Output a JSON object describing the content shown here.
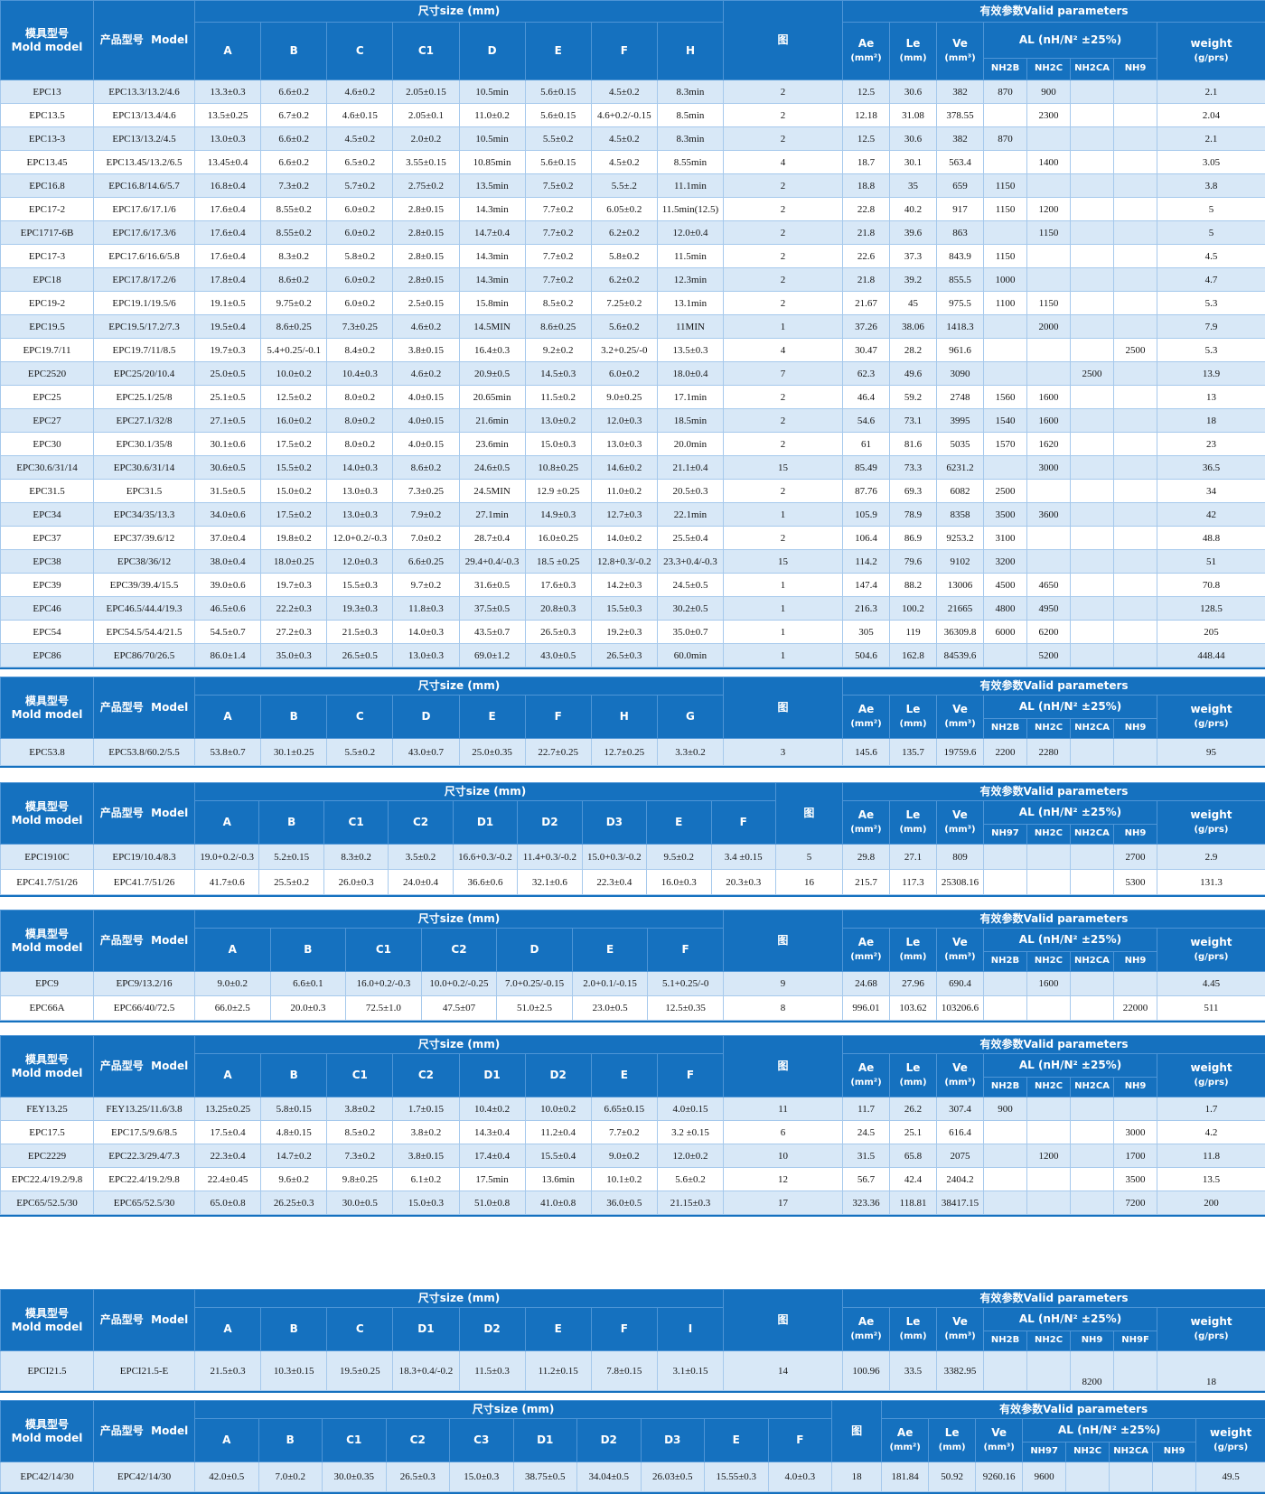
{
  "header_labels": {
    "mold": "模具型号",
    "mold_en": "Mold model",
    "product": "产品型号",
    "product_en": "Model",
    "size": "尺寸size (mm)",
    "figure": "图",
    "valid": "有效参数Valid parameters",
    "ae": "Ae",
    "ae_unit": "(mm²)",
    "le": "Le",
    "le_unit": "(mm)",
    "ve": "Ve",
    "ve_unit": "(mm³)",
    "al": "AL (nH/N² ±25%)",
    "weight": "weight",
    "weight_unit": "(g/prs)"
  },
  "tables": [
    {
      "dim_cols": [
        "A",
        "B",
        "C",
        "C1",
        "D",
        "E",
        "F",
        "H"
      ],
      "al_cols": [
        "NH2B",
        "NH2C",
        "NH2CA",
        "NH9"
      ],
      "rows": [
        [
          "EPC13",
          "EPC13.3/13.2/4.6",
          "13.3±0.3",
          "6.6±0.2",
          "4.6±0.2",
          "2.05±0.15",
          "10.5min",
          "5.6±0.15",
          "4.5±0.2",
          "8.3min",
          "2",
          "12.5",
          "30.6",
          "382",
          "870",
          "900",
          "",
          "",
          "2.1"
        ],
        [
          "EPC13.5",
          "EPC13/13.4/4.6",
          "13.5±0.25",
          "6.7±0.2",
          "4.6±0.15",
          "2.05±0.1",
          "11.0±0.2",
          "5.6±0.15",
          "4.6+0.2/-0.15",
          "8.5min",
          "2",
          "12.18",
          "31.08",
          "378.55",
          "",
          "2300",
          "",
          "",
          "2.04"
        ],
        [
          "EPC13-3",
          "EPC13/13.2/4.5",
          "13.0±0.3",
          "6.6±0.2",
          "4.5±0.2",
          "2.0±0.2",
          "10.5min",
          "5.5±0.2",
          "4.5±0.2",
          "8.3min",
          "2",
          "12.5",
          "30.6",
          "382",
          "870",
          "",
          "",
          "",
          "2.1"
        ],
        [
          "EPC13.45",
          "EPC13.45/13.2/6.5",
          "13.45±0.4",
          "6.6±0.2",
          "6.5±0.2",
          "3.55±0.15",
          "10.85min",
          "5.6±0.15",
          "4.5±0.2",
          "8.55min",
          "4",
          "18.7",
          "30.1",
          "563.4",
          "",
          "1400",
          "",
          "",
          "3.05"
        ],
        [
          "EPC16.8",
          "EPC16.8/14.6/5.7",
          "16.8±0.4",
          "7.3±0.2",
          "5.7±0.2",
          "2.75±0.2",
          "13.5min",
          "7.5±0.2",
          "5.5±.2",
          "11.1min",
          "2",
          "18.8",
          "35",
          "659",
          "1150",
          "",
          "",
          "",
          "3.8"
        ],
        [
          "EPC17-2",
          "EPC17.6/17.1/6",
          "17.6±0.4",
          "8.55±0.2",
          "6.0±0.2",
          "2.8±0.15",
          "14.3min",
          "7.7±0.2",
          "6.05±0.2",
          "11.5min(12.5)",
          "2",
          "22.8",
          "40.2",
          "917",
          "1150",
          "1200",
          "",
          "",
          "5"
        ],
        [
          "EPC1717-6B",
          "EPC17.6/17.3/6",
          "17.6±0.4",
          "8.55±0.2",
          "6.0±0.2",
          "2.8±0.15",
          "14.7±0.4",
          "7.7±0.2",
          "6.2±0.2",
          "12.0±0.4",
          "2",
          "21.8",
          "39.6",
          "863",
          "",
          "1150",
          "",
          "",
          "5"
        ],
        [
          "EPC17-3",
          "EPC17.6/16.6/5.8",
          "17.6±0.4",
          "8.3±0.2",
          "5.8±0.2",
          "2.8±0.15",
          "14.3min",
          "7.7±0.2",
          "5.8±0.2",
          "11.5min",
          "2",
          "22.6",
          "37.3",
          "843.9",
          "1150",
          "",
          "",
          "",
          "4.5"
        ],
        [
          "EPC18",
          "EPC17.8/17.2/6",
          "17.8±0.4",
          "8.6±0.2",
          "6.0±0.2",
          "2.8±0.15",
          "14.3min",
          "7.7±0.2",
          "6.2±0.2",
          "12.3min",
          "2",
          "21.8",
          "39.2",
          "855.5",
          "1000",
          "",
          "",
          "",
          "4.7"
        ],
        [
          "EPC19-2",
          "EPC19.1/19.5/6",
          "19.1±0.5",
          "9.75±0.2",
          "6.0±0.2",
          "2.5±0.15",
          "15.8min",
          "8.5±0.2",
          "7.25±0.2",
          "13.1min",
          "2",
          "21.67",
          "45",
          "975.5",
          "1100",
          "1150",
          "",
          "",
          "5.3"
        ],
        [
          "EPC19.5",
          "EPC19.5/17.2/7.3",
          "19.5±0.4",
          "8.6±0.25",
          "7.3±0.25",
          "4.6±0.2",
          "14.5MIN",
          "8.6±0.25",
          "5.6±0.2",
          "11MIN",
          "1",
          "37.26",
          "38.06",
          "1418.3",
          "",
          "2000",
          "",
          "",
          "7.9"
        ],
        [
          "EPC19.7/11",
          "EPC19.7/11/8.5",
          "19.7±0.3",
          "5.4+0.25/-0.1",
          "8.4±0.2",
          "3.8±0.15",
          "16.4±0.3",
          "9.2±0.2",
          "3.2+0.25/-0",
          "13.5±0.3",
          "4",
          "30.47",
          "28.2",
          "961.6",
          "",
          "",
          "",
          "2500",
          "5.3"
        ],
        [
          "EPC2520",
          "EPC25/20/10.4",
          "25.0±0.5",
          "10.0±0.2",
          "10.4±0.3",
          "4.6±0.2",
          "20.9±0.5",
          "14.5±0.3",
          "6.0±0.2",
          "18.0±0.4",
          "7",
          "62.3",
          "49.6",
          "3090",
          "",
          "",
          "2500",
          "",
          "13.9"
        ],
        [
          "EPC25",
          "EPC25.1/25/8",
          "25.1±0.5",
          "12.5±0.2",
          "8.0±0.2",
          "4.0±0.15",
          "20.65min",
          "11.5±0.2",
          "9.0±0.25",
          "17.1min",
          "2",
          "46.4",
          "59.2",
          "2748",
          "1560",
          "1600",
          "",
          "",
          "13"
        ],
        [
          "EPC27",
          "EPC27.1/32/8",
          "27.1±0.5",
          "16.0±0.2",
          "8.0±0.2",
          "4.0±0.15",
          "21.6min",
          "13.0±0.2",
          "12.0±0.3",
          "18.5min",
          "2",
          "54.6",
          "73.1",
          "3995",
          "1540",
          "1600",
          "",
          "",
          "18"
        ],
        [
          "EPC30",
          "EPC30.1/35/8",
          "30.1±0.6",
          "17.5±0.2",
          "8.0±0.2",
          "4.0±0.15",
          "23.6min",
          "15.0±0.3",
          "13.0±0.3",
          "20.0min",
          "2",
          "61",
          "81.6",
          "5035",
          "1570",
          "1620",
          "",
          "",
          "23"
        ],
        [
          "EPC30.6/31/14",
          "EPC30.6/31/14",
          "30.6±0.5",
          "15.5±0.2",
          "14.0±0.3",
          "8.6±0.2",
          "24.6±0.5",
          "10.8±0.25",
          "14.6±0.2",
          "21.1±0.4",
          "15",
          "85.49",
          "73.3",
          "6231.2",
          "",
          "3000",
          "",
          "",
          "36.5"
        ],
        [
          "EPC31.5",
          "EPC31.5",
          "31.5±0.5",
          "15.0±0.2",
          "13.0±0.3",
          "7.3±0.25",
          "24.5MIN",
          "12.9 ±0.25",
          "11.0±0.2",
          "20.5±0.3",
          "2",
          "87.76",
          "69.3",
          "6082",
          "2500",
          "",
          "",
          "",
          "34"
        ],
        [
          "EPC34",
          "EPC34/35/13.3",
          "34.0±0.6",
          "17.5±0.2",
          "13.0±0.3",
          "7.9±0.2",
          "27.1min",
          "14.9±0.3",
          "12.7±0.3",
          "22.1min",
          "1",
          "105.9",
          "78.9",
          "8358",
          "3500",
          "3600",
          "",
          "",
          "42"
        ],
        [
          "EPC37",
          "EPC37/39.6/12",
          "37.0±0.4",
          "19.8±0.2",
          "12.0+0.2/-0.3",
          "7.0±0.2",
          "28.7±0.4",
          "16.0±0.25",
          "14.0±0.2",
          "25.5±0.4",
          "2",
          "106.4",
          "86.9",
          "9253.2",
          "3100",
          "",
          "",
          "",
          "48.8"
        ],
        [
          "EPC38",
          "EPC38/36/12",
          "38.0±0.4",
          "18.0±0.25",
          "12.0±0.3",
          "6.6±0.25",
          "29.4+0.4/-0.3",
          "18.5 ±0.25",
          "12.8+0.3/-0.2",
          "23.3+0.4/-0.3",
          "15",
          "114.2",
          "79.6",
          "9102",
          "3200",
          "",
          "",
          "",
          "51"
        ],
        [
          "EPC39",
          "EPC39/39.4/15.5",
          "39.0±0.6",
          "19.7±0.3",
          "15.5±0.3",
          "9.7±0.2",
          "31.6±0.5",
          "17.6±0.3",
          "14.2±0.3",
          "24.5±0.5",
          "1",
          "147.4",
          "88.2",
          "13006",
          "4500",
          "4650",
          "",
          "",
          "70.8"
        ],
        [
          "EPC46",
          "EPC46.5/44.4/19.3",
          "46.5±0.6",
          "22.2±0.3",
          "19.3±0.3",
          "11.8±0.3",
          "37.5±0.5",
          "20.8±0.3",
          "15.5±0.3",
          "30.2±0.5",
          "1",
          "216.3",
          "100.2",
          "21665",
          "4800",
          "4950",
          "",
          "",
          "128.5"
        ],
        [
          "EPC54",
          "EPC54.5/54.4/21.5",
          "54.5±0.7",
          "27.2±0.3",
          "21.5±0.3",
          "14.0±0.3",
          "43.5±0.7",
          "26.5±0.3",
          "19.2±0.3",
          "35.0±0.7",
          "1",
          "305",
          "119",
          "36309.8",
          "6000",
          "6200",
          "",
          "",
          "205"
        ],
        [
          "EPC86",
          "EPC86/70/26.5",
          "86.0±1.4",
          "35.0±0.3",
          "26.5±0.5",
          "13.0±0.3",
          "69.0±1.2",
          "43.0±0.5",
          "26.5±0.3",
          "60.0min",
          "1",
          "504.6",
          "162.8",
          "84539.6",
          "",
          "5200",
          "",
          "",
          "448.44"
        ]
      ]
    },
    {
      "dim_cols": [
        "A",
        "B",
        "C",
        "D",
        "E",
        "F",
        "H",
        "G"
      ],
      "al_cols": [
        "NH2B",
        "NH2C",
        "NH2CA",
        "NH9"
      ],
      "rows": [
        [
          "EPC53.8",
          "EPC53.8/60.2/5.5",
          "53.8±0.7",
          "30.1±0.25",
          "5.5±0.2",
          "43.0±0.7",
          "25.0±0.35",
          "22.7±0.25",
          "12.7±0.25",
          "3.3±0.2",
          "3",
          "145.6",
          "135.7",
          "19759.6",
          "2200",
          "2280",
          "",
          "",
          "95"
        ]
      ]
    },
    {
      "dim_cols": [
        "A",
        "B",
        "C1",
        "C2",
        "D1",
        "D2",
        "D3",
        "E",
        "F"
      ],
      "al_cols": [
        "NH97",
        "NH2C",
        "NH2CA",
        "NH9"
      ],
      "rows": [
        [
          "EPC1910C",
          "EPC19/10.4/8.3",
          "19.0+0.2/-0.3",
          "5.2±0.15",
          "8.3±0.2",
          "3.5±0.2",
          "16.6+0.3/-0.2",
          "11.4+0.3/-0.2",
          "15.0+0.3/-0.2",
          "9.5±0.2",
          "3.4 ±0.15",
          "5",
          "29.8",
          "27.1",
          "809",
          "",
          "",
          "",
          "2700",
          "2.9"
        ],
        [
          "EPC41.7/51/26",
          "EPC41.7/51/26",
          "41.7±0.6",
          "25.5±0.2",
          "26.0±0.3",
          "24.0±0.4",
          "36.6±0.6",
          "32.1±0.6",
          "22.3±0.4",
          "16.0±0.3",
          "20.3±0.3",
          "16",
          "215.7",
          "117.3",
          "25308.16",
          "",
          "",
          "",
          "5300",
          "131.3"
        ]
      ]
    },
    {
      "dim_cols": [
        "A",
        "B",
        "C1",
        "C2",
        "D",
        "E",
        "F"
      ],
      "al_cols": [
        "NH2B",
        "NH2C",
        "NH2CA",
        "NH9"
      ],
      "rows": [
        [
          "EPC9",
          "EPC9/13.2/16",
          "9.0±0.2",
          "6.6±0.1",
          "16.0+0.2/-0.3",
          "10.0+0.2/-0.25",
          "7.0+0.25/-0.15",
          "2.0+0.1/-0.15",
          "5.1+0.25/-0",
          "9",
          "24.68",
          "27.96",
          "690.4",
          "",
          "1600",
          "",
          "",
          "4.45"
        ],
        [
          "EPC66A",
          "EPC66/40/72.5",
          "66.0±2.5",
          "20.0±0.3",
          "72.5±1.0",
          "47.5±07",
          "51.0±2.5",
          "23.0±0.5",
          "12.5±0.35",
          "8",
          "996.01",
          "103.62",
          "103206.6",
          "",
          "",
          "",
          "22000",
          "511"
        ]
      ]
    },
    {
      "dim_cols": [
        "A",
        "B",
        "C1",
        "C2",
        "D1",
        "D2",
        "E",
        "F"
      ],
      "al_cols": [
        "NH2B",
        "NH2C",
        "NH2CA",
        "NH9"
      ],
      "rows": [
        [
          "FEY13.25",
          "FEY13.25/11.6/3.8",
          "13.25±0.25",
          "5.8±0.15",
          "3.8±0.2",
          "1.7±0.15",
          "10.4±0.2",
          "10.0±0.2",
          "6.65±0.15",
          "4.0±0.15",
          "11",
          "11.7",
          "26.2",
          "307.4",
          "900",
          "",
          "",
          "",
          "1.7"
        ],
        [
          "EPC17.5",
          "EPC17.5/9.6/8.5",
          "17.5±0.4",
          "4.8±0.15",
          "8.5±0.2",
          "3.8±0.2",
          "14.3±0.4",
          "11.2±0.4",
          "7.7±0.2",
          "3.2 ±0.15",
          "6",
          "24.5",
          "25.1",
          "616.4",
          "",
          "",
          "",
          "3000",
          "4.2"
        ],
        [
          "EPC2229",
          "EPC22.3/29.4/7.3",
          "22.3±0.4",
          "14.7±0.2",
          "7.3±0.2",
          "3.8±0.15",
          "17.4±0.4",
          "15.5±0.4",
          "9.0±0.2",
          "12.0±0.2",
          "10",
          "31.5",
          "65.8",
          "2075",
          "",
          "1200",
          "",
          "1700",
          "11.8"
        ],
        [
          "EPC22.4/19.2/9.8",
          "EPC22.4/19.2/9.8",
          "22.4±0.45",
          "9.6±0.2",
          "9.8±0.25",
          "6.1±0.2",
          "17.5min",
          "13.6min",
          "10.1±0.2",
          "5.6±0.2",
          "12",
          "56.7",
          "42.4",
          "2404.2",
          "",
          "",
          "",
          "3500",
          "13.5"
        ],
        [
          "EPC65/52.5/30",
          "EPC65/52.5/30",
          "65.0±0.8",
          "26.25±0.3",
          "30.0±0.5",
          "15.0±0.3",
          "51.0±0.8",
          "41.0±0.8",
          "36.0±0.5",
          "21.15±0.3",
          "17",
          "323.36",
          "118.81",
          "38417.15",
          "",
          "",
          "",
          "7200",
          "200"
        ]
      ]
    },
    {
      "dim_cols": [
        "A",
        "B",
        "C",
        "D1",
        "D2",
        "E",
        "F",
        "I"
      ],
      "al_cols": [
        "NH2B",
        "NH2C",
        "NH9",
        "NH9F"
      ],
      "rows": [
        [
          "EPCI21.5",
          "EPCI21.5-E",
          "21.5±0.3",
          "10.3±0.15",
          "19.5±0.25",
          "18.3+0.4/-0.2",
          "11.5±0.3",
          "11.2±0.15",
          "7.8±0.15",
          "3.1±0.15",
          "14",
          "100.96",
          "33.5",
          "3382.95",
          "",
          "",
          "8200",
          "",
          "18"
        ]
      ]
    },
    {
      "dim_cols": [
        "A",
        "B",
        "C1",
        "C2",
        "C3",
        "D1",
        "D2",
        "D3",
        "E",
        "F"
      ],
      "al_cols": [
        "NH97",
        "NH2C",
        "NH2CA",
        "NH9"
      ],
      "rows": [
        [
          "EPC42/14/30",
          "EPC42/14/30",
          "42.0±0.5",
          "7.0±0.2",
          "30.0±0.35",
          "26.5±0.3",
          "15.0±0.3",
          "38.75±0.5",
          "34.04±0.5",
          "26.03±0.5",
          "15.55±0.3",
          "4.0±0.3",
          "18",
          "181.84",
          "50.92",
          "9260.16",
          "9600",
          "",
          "",
          "",
          "49.5"
        ]
      ]
    }
  ]
}
